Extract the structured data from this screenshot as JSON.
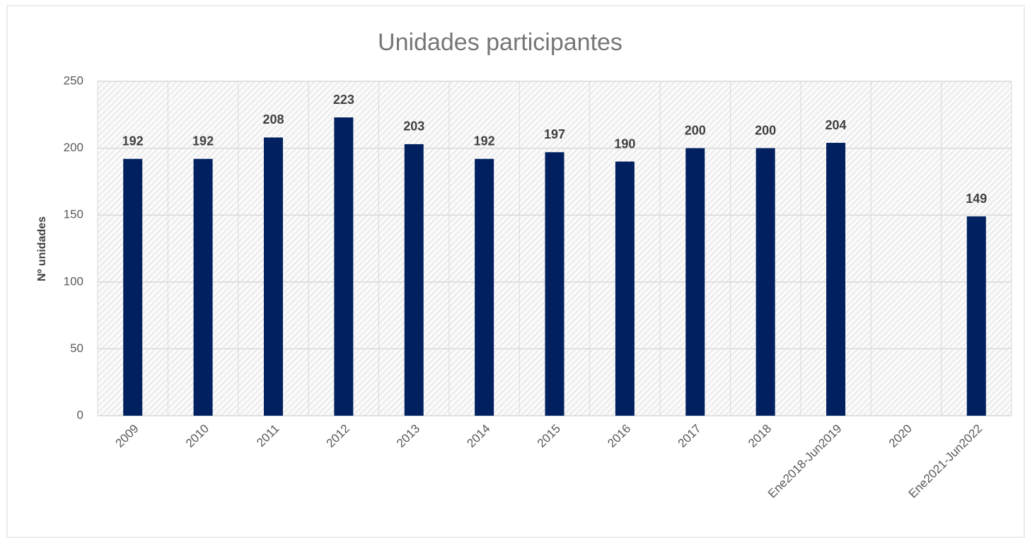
{
  "chart_data": {
    "type": "bar",
    "title": "Unidades participantes",
    "y_label": "Nº unidades",
    "categories": [
      "2009",
      "2010",
      "2011",
      "2012",
      "2013",
      "2014",
      "2015",
      "2016",
      "2017",
      "2018",
      "Ene2018-Jun2019",
      "2020",
      "Ene2021-Jun2022"
    ],
    "values": [
      192,
      192,
      208,
      223,
      203,
      192,
      197,
      190,
      200,
      200,
      204,
      null,
      149
    ],
    "color": "#002060",
    "ylim": [
      0,
      250
    ],
    "yticks": [
      0,
      50,
      100,
      150,
      200,
      250
    ],
    "grid": true
  }
}
